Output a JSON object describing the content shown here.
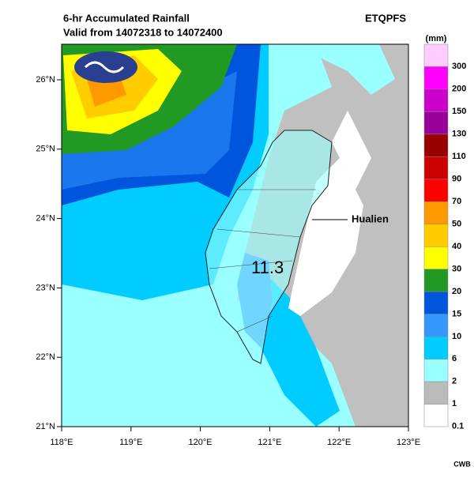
{
  "header": {
    "title": "6-hr Accumulated Rainfall",
    "subtitle": "Valid from 14072318 to 14072400",
    "product": "ETQPFS"
  },
  "map": {
    "lat_labels": [
      "26°N",
      "25°N",
      "24°N",
      "23°N",
      "22°N",
      "21°N"
    ],
    "lon_labels": [
      "118°E",
      "119°E",
      "120°E",
      "121°E",
      "122°E",
      "123°E"
    ],
    "station": "Hualien",
    "max_value": "11.3"
  },
  "legend": {
    "unit": "(mm)",
    "items": [
      {
        "label": "300",
        "color": "#ffccff"
      },
      {
        "label": "200",
        "color": "#ff00ff"
      },
      {
        "label": "150",
        "color": "#cc00cc"
      },
      {
        "label": "130",
        "color": "#990099"
      },
      {
        "label": "110",
        "color": "#990000"
      },
      {
        "label": "90",
        "color": "#cc0000"
      },
      {
        "label": "70",
        "color": "#ff0000"
      },
      {
        "label": "50",
        "color": "#ff9900"
      },
      {
        "label": "40",
        "color": "#ffcc00"
      },
      {
        "label": "30",
        "color": "#ffff00"
      },
      {
        "label": "20",
        "color": "#229922"
      },
      {
        "label": "15",
        "color": "#0055dd"
      },
      {
        "label": "10",
        "color": "#3399ff"
      },
      {
        "label": "6",
        "color": "#00ccff"
      },
      {
        "label": "2",
        "color": "#99ffff"
      },
      {
        "label": "1",
        "color": "#bbbbbb"
      },
      {
        "label": "0.1",
        "color": "#ffffff"
      }
    ]
  },
  "footer": "CWB"
}
